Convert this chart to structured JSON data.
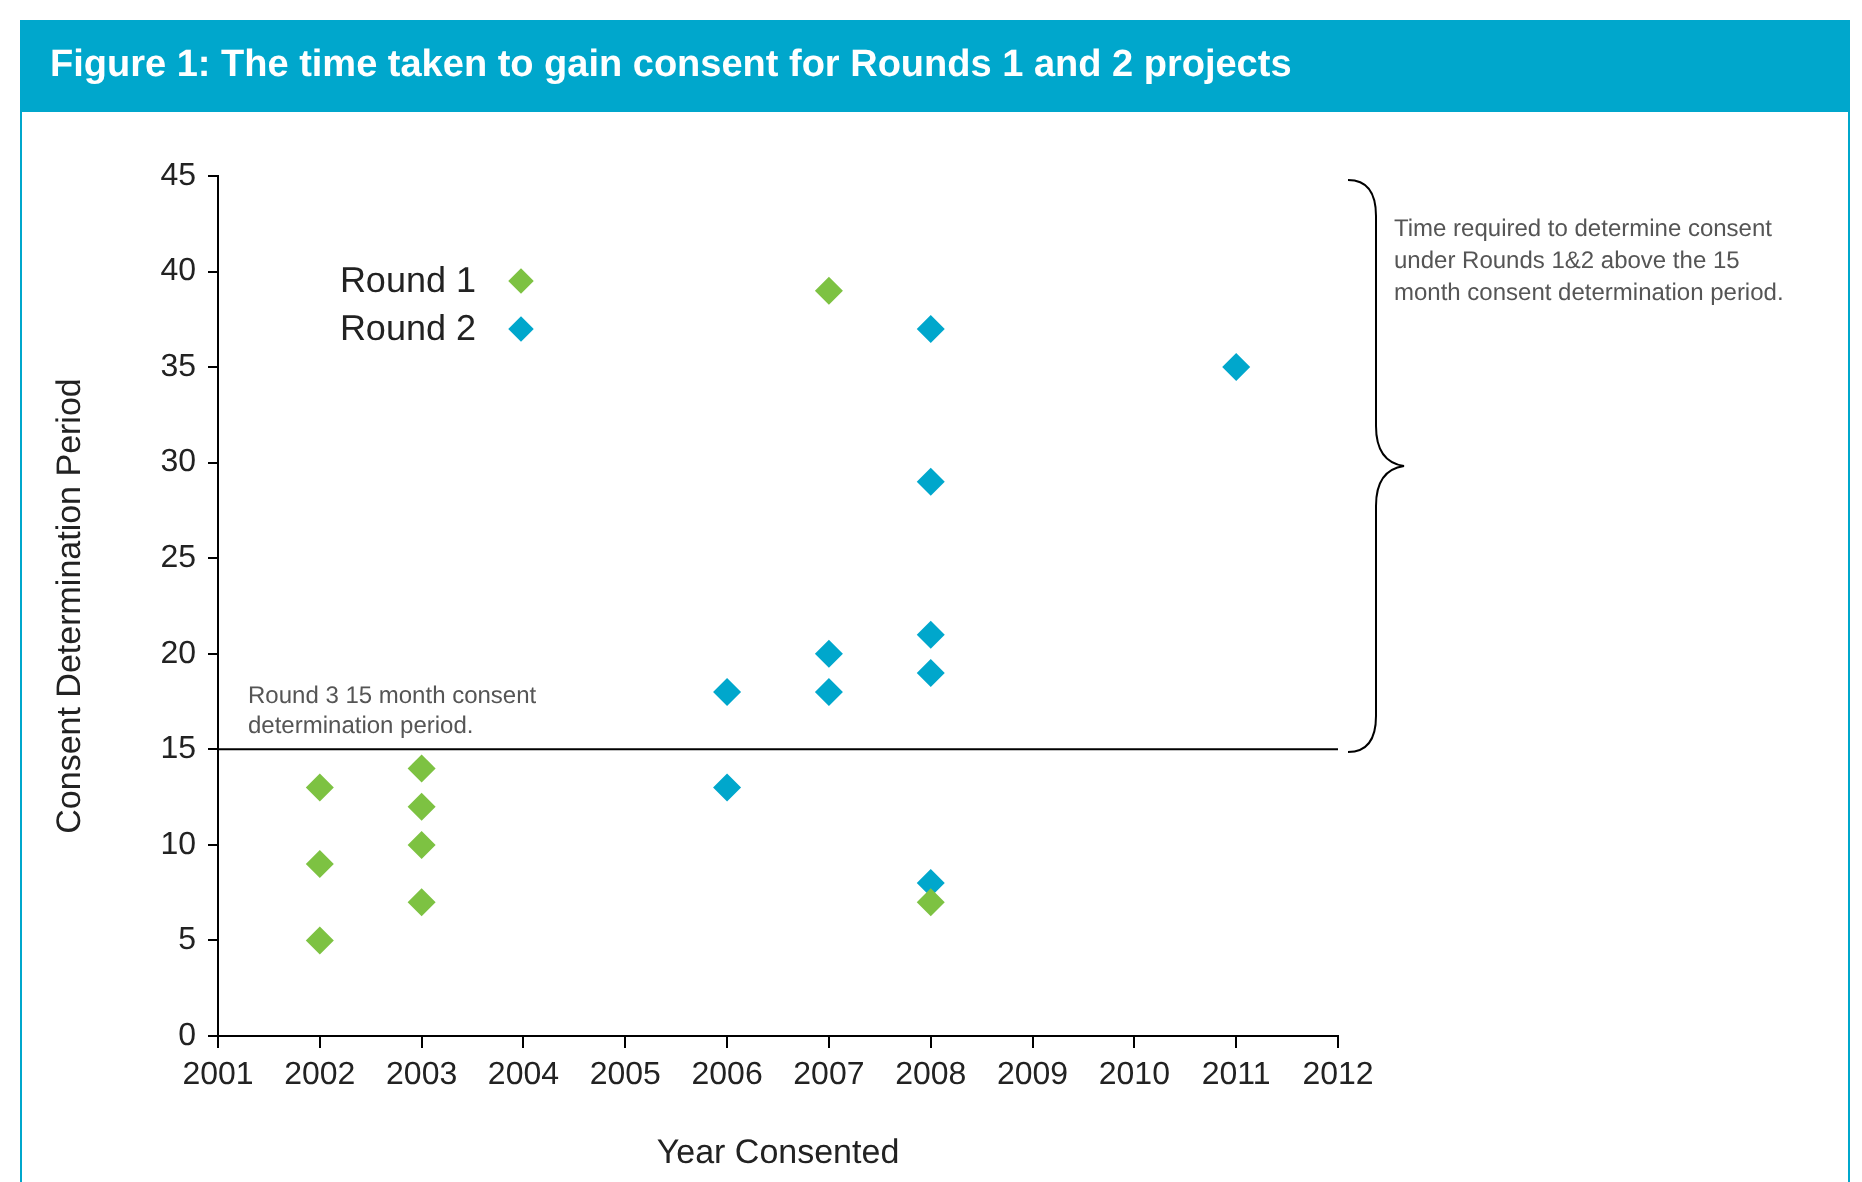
{
  "chart_data": {
    "type": "scatter",
    "title": "Figure 1: The time taken to gain consent for Rounds 1 and 2 projects",
    "xlabel": "Year Consented",
    "ylabel": "Consent Determination Period",
    "series": [
      {
        "name": "Round 1",
        "color": "#7dc242",
        "x": [
          2002,
          2002,
          2002,
          2003,
          2003,
          2003,
          2003,
          2007,
          2008
        ],
        "values": [
          13,
          9,
          5,
          14,
          12,
          10,
          7,
          39,
          7
        ]
      },
      {
        "name": "Round 2",
        "color": "#00a7cc",
        "x": [
          2006,
          2006,
          2007,
          2007,
          2008,
          2008,
          2008,
          2008,
          2008,
          2011
        ],
        "values": [
          18,
          13,
          20,
          18,
          37,
          29,
          21,
          19,
          8,
          35
        ]
      }
    ],
    "xlim": [
      2001,
      2012
    ],
    "xticks": [
      2001,
      2002,
      2003,
      2004,
      2005,
      2006,
      2007,
      2008,
      2009,
      2010,
      2011,
      2012
    ],
    "ylim": [
      0,
      45
    ],
    "yticks": [
      0,
      5,
      10,
      15,
      20,
      25,
      30,
      35,
      40,
      45
    ],
    "ref_lines": [
      {
        "axis": "y",
        "value": 15,
        "label": "Round 3 15 month consent determination period.",
        "color": "#000000"
      }
    ],
    "annotations": [
      "Time required to determine consent under Rounds 1&2 above the 15 month consent determination period."
    ],
    "grid": false,
    "legend": "top left",
    "marker": "diamond"
  }
}
